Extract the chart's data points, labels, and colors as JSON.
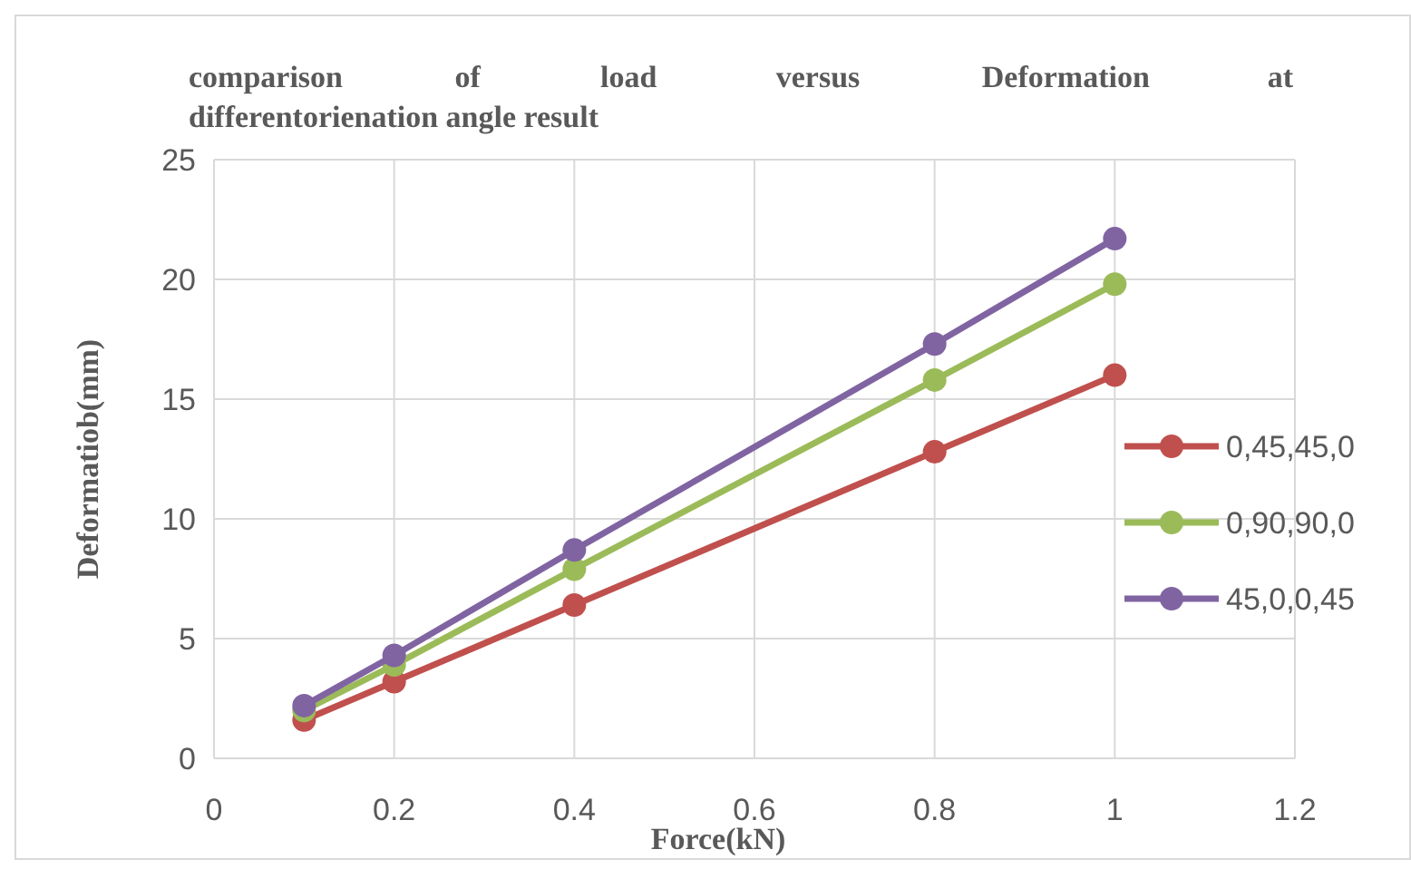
{
  "chart_data": {
    "type": "line",
    "title": "comparison of load versus Deformation at differentorienation angle result",
    "xlabel": "Force(kN)",
    "ylabel": "Deformatiob(mm)",
    "x": [
      0.1,
      0.2,
      0.4,
      0.8,
      1
    ],
    "series": [
      {
        "name": "0,45,45,0",
        "color": "#c0504d",
        "values": [
          1.6,
          3.2,
          6.4,
          12.8,
          16.0
        ]
      },
      {
        "name": "0,90,90,0",
        "color": "#9bbb59",
        "values": [
          2.0,
          3.9,
          7.9,
          15.8,
          19.8
        ]
      },
      {
        "name": "45,0,0,45",
        "color": "#8064a2",
        "values": [
          2.2,
          4.3,
          8.7,
          17.3,
          21.7
        ]
      }
    ],
    "xlim": [
      0,
      1.2
    ],
    "xticks": [
      0,
      0.2,
      0.4,
      0.6,
      0.8,
      1,
      1.2
    ],
    "ylim": [
      0,
      25
    ],
    "yticks": [
      0,
      5,
      10,
      15,
      20,
      25
    ],
    "grid": true,
    "legend": "right",
    "marker": "circle",
    "line_style": "solid"
  }
}
